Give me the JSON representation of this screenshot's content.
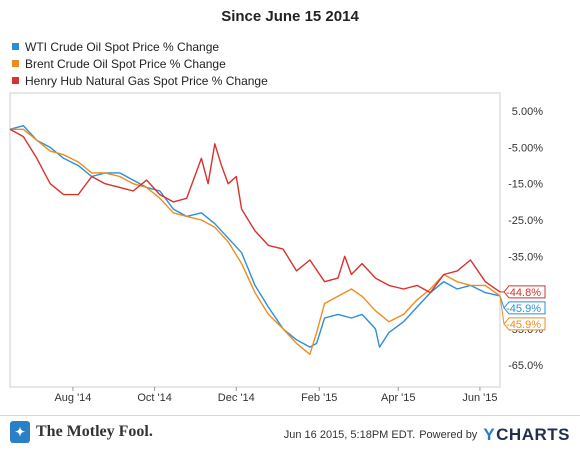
{
  "chart_data": {
    "type": "line",
    "title": "Since June 15 2014",
    "x_ticks": [
      "Aug '14",
      "Oct '14",
      "Dec '14",
      "Feb '15",
      "Apr '15",
      "Jun '15"
    ],
    "y_ticks": [
      "5.00%",
      "-5.00%",
      "-15.0%",
      "-25.0%",
      "-35.0%",
      "-45.0%",
      "-55.0%",
      "-65.0%"
    ],
    "xlim": [
      "2014-06-15",
      "2015-06-16"
    ],
    "ylim": [
      -71,
      10
    ],
    "grid": false,
    "legend_position": "top-left",
    "series": [
      {
        "name": "WTI Crude Oil Spot Price % Change",
        "color": "#2b8fd8",
        "end_label": "-45.9%",
        "points": [
          [
            "2014-06-15",
            0
          ],
          [
            "2014-06-25",
            1
          ],
          [
            "2014-07-05",
            -3
          ],
          [
            "2014-07-15",
            -5
          ],
          [
            "2014-07-25",
            -8
          ],
          [
            "2014-08-05",
            -10
          ],
          [
            "2014-08-15",
            -13
          ],
          [
            "2014-08-25",
            -12
          ],
          [
            "2014-09-05",
            -12
          ],
          [
            "2014-09-15",
            -14
          ],
          [
            "2014-09-25",
            -16
          ],
          [
            "2014-10-05",
            -17
          ],
          [
            "2014-10-15",
            -22
          ],
          [
            "2014-10-25",
            -24
          ],
          [
            "2014-11-05",
            -23
          ],
          [
            "2014-11-15",
            -26
          ],
          [
            "2014-11-25",
            -30
          ],
          [
            "2014-12-05",
            -34
          ],
          [
            "2014-12-15",
            -43
          ],
          [
            "2014-12-25",
            -49
          ],
          [
            "2015-01-05",
            -55
          ],
          [
            "2015-01-15",
            -58
          ],
          [
            "2015-01-25",
            -60
          ],
          [
            "2015-01-30",
            -59
          ],
          [
            "2015-02-05",
            -52
          ],
          [
            "2015-02-15",
            -51
          ],
          [
            "2015-02-25",
            -52
          ],
          [
            "2015-03-05",
            -51
          ],
          [
            "2015-03-15",
            -55
          ],
          [
            "2015-03-18",
            -60
          ],
          [
            "2015-03-25",
            -56
          ],
          [
            "2015-04-05",
            -53
          ],
          [
            "2015-04-15",
            -49
          ],
          [
            "2015-04-25",
            -45
          ],
          [
            "2015-05-05",
            -42
          ],
          [
            "2015-05-15",
            -44
          ],
          [
            "2015-05-25",
            -43
          ],
          [
            "2015-06-05",
            -45
          ],
          [
            "2015-06-16",
            -45.9
          ]
        ]
      },
      {
        "name": "Brent Crude Oil Spot Price % Change",
        "color": "#f08c1f",
        "end_label": "-45.9%",
        "points": [
          [
            "2014-06-15",
            0
          ],
          [
            "2014-06-25",
            0
          ],
          [
            "2014-07-05",
            -3
          ],
          [
            "2014-07-15",
            -6
          ],
          [
            "2014-07-25",
            -7
          ],
          [
            "2014-08-05",
            -9
          ],
          [
            "2014-08-15",
            -12
          ],
          [
            "2014-08-25",
            -12
          ],
          [
            "2014-09-05",
            -13
          ],
          [
            "2014-09-15",
            -15
          ],
          [
            "2014-09-25",
            -16
          ],
          [
            "2014-10-05",
            -19
          ],
          [
            "2014-10-15",
            -23
          ],
          [
            "2014-10-25",
            -24
          ],
          [
            "2014-11-05",
            -25
          ],
          [
            "2014-11-15",
            -27
          ],
          [
            "2014-11-25",
            -31
          ],
          [
            "2014-12-05",
            -37
          ],
          [
            "2014-12-15",
            -45
          ],
          [
            "2014-12-25",
            -51
          ],
          [
            "2015-01-05",
            -55
          ],
          [
            "2015-01-15",
            -59
          ],
          [
            "2015-01-25",
            -62
          ],
          [
            "2015-01-30",
            -56
          ],
          [
            "2015-02-05",
            -48
          ],
          [
            "2015-02-15",
            -46
          ],
          [
            "2015-02-25",
            -44
          ],
          [
            "2015-03-05",
            -46
          ],
          [
            "2015-03-15",
            -50
          ],
          [
            "2015-03-25",
            -53
          ],
          [
            "2015-04-05",
            -51
          ],
          [
            "2015-04-15",
            -47
          ],
          [
            "2015-04-25",
            -44
          ],
          [
            "2015-05-05",
            -40
          ],
          [
            "2015-05-15",
            -42
          ],
          [
            "2015-05-25",
            -43
          ],
          [
            "2015-06-05",
            -43
          ],
          [
            "2015-06-16",
            -45.9
          ]
        ]
      },
      {
        "name": "Henry Hub Natural Gas Spot Price % Change",
        "color": "#d8322c",
        "end_label": "-44.8%",
        "points": [
          [
            "2014-06-15",
            0
          ],
          [
            "2014-06-25",
            -2
          ],
          [
            "2014-07-05",
            -8
          ],
          [
            "2014-07-15",
            -15
          ],
          [
            "2014-07-25",
            -18
          ],
          [
            "2014-08-05",
            -18
          ],
          [
            "2014-08-15",
            -13
          ],
          [
            "2014-08-25",
            -15
          ],
          [
            "2014-09-05",
            -16
          ],
          [
            "2014-09-15",
            -17
          ],
          [
            "2014-09-25",
            -14
          ],
          [
            "2014-10-05",
            -18
          ],
          [
            "2014-10-15",
            -20
          ],
          [
            "2014-10-25",
            -19
          ],
          [
            "2014-11-05",
            -8
          ],
          [
            "2014-11-10",
            -15
          ],
          [
            "2014-11-15",
            -4
          ],
          [
            "2014-11-20",
            -10
          ],
          [
            "2014-11-25",
            -15
          ],
          [
            "2014-12-01",
            -13
          ],
          [
            "2014-12-05",
            -22
          ],
          [
            "2014-12-10",
            -25
          ],
          [
            "2014-12-15",
            -28
          ],
          [
            "2014-12-25",
            -32
          ],
          [
            "2015-01-05",
            -33
          ],
          [
            "2015-01-15",
            -39
          ],
          [
            "2015-01-25",
            -36
          ],
          [
            "2015-02-05",
            -42
          ],
          [
            "2015-02-15",
            -41
          ],
          [
            "2015-02-20",
            -35
          ],
          [
            "2015-02-25",
            -40
          ],
          [
            "2015-03-05",
            -37
          ],
          [
            "2015-03-15",
            -41
          ],
          [
            "2015-03-25",
            -43
          ],
          [
            "2015-04-05",
            -44
          ],
          [
            "2015-04-15",
            -43
          ],
          [
            "2015-04-25",
            -45
          ],
          [
            "2015-05-05",
            -40
          ],
          [
            "2015-05-15",
            -39
          ],
          [
            "2015-05-25",
            -36
          ],
          [
            "2015-06-05",
            -42
          ],
          [
            "2015-06-16",
            -44.8
          ]
        ]
      }
    ]
  },
  "branding": {
    "publisher": "The Motley Fool.",
    "publisher_icon": "jester-cap-icon",
    "timestamp": "Jun 16 2015, 5:18PM EDT.",
    "powered_by": "Powered by",
    "provider": "CHARTS",
    "provider_mark": "Y"
  }
}
